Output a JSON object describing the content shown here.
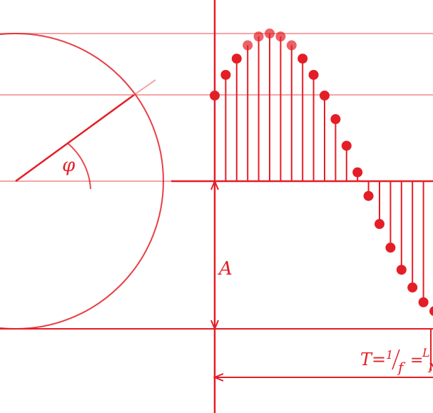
{
  "diagram": {
    "angle_label": "φ",
    "amplitude_label": "A",
    "period_formula": {
      "lhs": "T=",
      "frac1_num": "1",
      "frac1_den": "f",
      "eq": "=",
      "frac2_num": "L",
      "frac2_den": "N"
    },
    "colors": {
      "line": "#e41e26",
      "guide": "#f3a6a9",
      "dot": "#e41e26"
    }
  },
  "chart_data": {
    "type": "sampled-sine",
    "samples": [
      0.58,
      0.72,
      0.83,
      0.92,
      0.98,
      1.0,
      0.98,
      0.92,
      0.83,
      0.72,
      0.58,
      0.42,
      0.24,
      0.06,
      -0.1,
      -0.29,
      -0.45,
      -0.6,
      -0.72,
      -0.82,
      -0.88,
      -0.93
    ]
  }
}
